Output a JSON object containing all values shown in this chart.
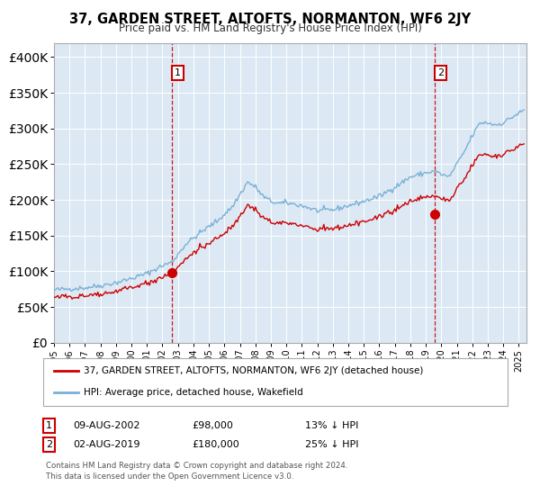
{
  "title": "37, GARDEN STREET, ALTOFTS, NORMANTON, WF6 2JY",
  "subtitle": "Price paid vs. HM Land Registry's House Price Index (HPI)",
  "bg_color": "#dce9f5",
  "plot_bg_color": "#dce9f5",
  "red_line_color": "#cc0000",
  "blue_line_color": "#7ab0d4",
  "sale1_date": 2002.62,
  "sale1_price": 98000,
  "sale1_label": "1",
  "sale2_date": 2019.58,
  "sale2_price": 180000,
  "sale2_label": "2",
  "legend_entry1": "37, GARDEN STREET, ALTOFTS, NORMANTON, WF6 2JY (detached house)",
  "legend_entry2": "HPI: Average price, detached house, Wakefield",
  "annotation1_date": "09-AUG-2002",
  "annotation1_price": "£98,000",
  "annotation1_hpi": "13% ↓ HPI",
  "annotation2_date": "02-AUG-2019",
  "annotation2_price": "£180,000",
  "annotation2_hpi": "25% ↓ HPI",
  "footer1": "Contains HM Land Registry data © Crown copyright and database right 2024.",
  "footer2": "This data is licensed under the Open Government Licence v3.0.",
  "ylim": [
    0,
    420000
  ],
  "xlim_start": 1995.0,
  "xlim_end": 2025.5
}
